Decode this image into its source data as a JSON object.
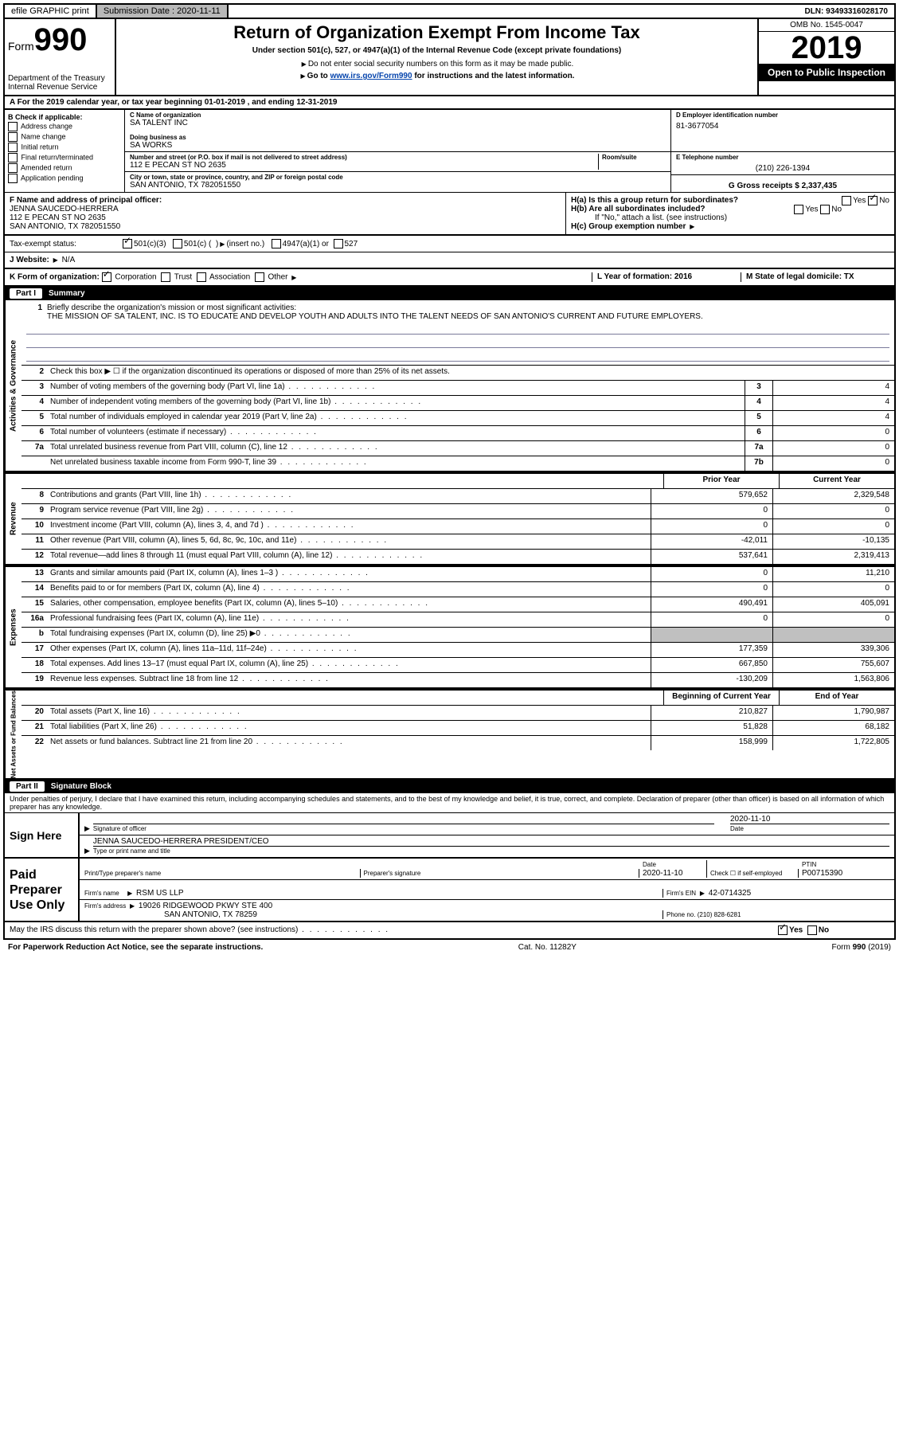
{
  "topbar": {
    "efile": "efile GRAPHIC print",
    "submission_label": "Submission Date : 2020-11-11",
    "dln": "DLN: 93493316028170"
  },
  "header": {
    "form_label": "Form",
    "form_number": "990",
    "dept": "Department of the Treasury",
    "irs": "Internal Revenue Service",
    "title": "Return of Organization Exempt From Income Tax",
    "subtitle": "Under section 501(c), 527, or 4947(a)(1) of the Internal Revenue Code (except private foundations)",
    "note1": "Do not enter social security numbers on this form as it may be made public.",
    "note2_prefix": "Go to ",
    "note2_link": "www.irs.gov/Form990",
    "note2_suffix": " for instructions and the latest information.",
    "omb": "OMB No. 1545-0047",
    "year": "2019",
    "open": "Open to Public Inspection"
  },
  "row_a": "A   For the 2019 calendar year, or tax year beginning 01-01-2019    , and ending 12-31-2019",
  "section_b": {
    "label": "B Check if applicable:",
    "items": [
      "Address change",
      "Name change",
      "Initial return",
      "Final return/terminated",
      "Amended return",
      "Application pending"
    ]
  },
  "section_c": {
    "name_label": "C Name of organization",
    "name": "SA TALENT INC",
    "dba_label": "Doing business as",
    "dba": "SA WORKS",
    "street_label": "Number and street (or P.O. box if mail is not delivered to street address)",
    "room_label": "Room/suite",
    "street": "112 E PECAN ST NO 2635",
    "city_label": "City or town, state or province, country, and ZIP or foreign postal code",
    "city": "SAN ANTONIO, TX  782051550"
  },
  "section_d": {
    "label": "D Employer identification number",
    "value": "81-3677054"
  },
  "section_e": {
    "label": "E Telephone number",
    "value": "(210) 226-1394"
  },
  "section_g": {
    "label": "G Gross receipts $ 2,337,435"
  },
  "section_f": {
    "label": "F  Name and address of principal officer:",
    "name": "JENNA SAUCEDO-HERRERA",
    "street": "112 E PECAN ST NO 2635",
    "city": "SAN ANTONIO, TX  782051550"
  },
  "section_h": {
    "ha": "H(a)  Is this a group return for subordinates?",
    "hb": "H(b)  Are all subordinates included?",
    "hb_note": "If \"No,\" attach a list. (see instructions)",
    "hc": "H(c)  Group exemption number",
    "yes": "Yes",
    "no": "No"
  },
  "tax_exempt": {
    "label": "Tax-exempt status:",
    "opt1": "501(c)(3)",
    "opt2_a": "501(c) (",
    "opt2_b": ")",
    "opt2_insert": "(insert no.)",
    "opt3": "4947(a)(1) or",
    "opt4": "527"
  },
  "website": {
    "label": "J   Website:",
    "value": "N/A"
  },
  "klm": {
    "k_label": "K Form of organization:",
    "k_corp": "Corporation",
    "k_trust": "Trust",
    "k_assoc": "Association",
    "k_other": "Other",
    "l": "L Year of formation: 2016",
    "m": "M State of legal domicile: TX"
  },
  "part1": {
    "label": "Part I",
    "title": "Summary"
  },
  "mission": {
    "num": "1",
    "desc": "Briefly describe the organization's mission or most significant activities:",
    "text": "THE MISSION OF SA TALENT, INC. IS TO EDUCATE AND DEVELOP YOUTH AND ADULTS INTO THE TALENT NEEDS OF SAN ANTONIO'S CURRENT AND FUTURE EMPLOYERS."
  },
  "governance": {
    "tab": "Activities & Governance",
    "lines": [
      {
        "n": "2",
        "d": "Check this box ▶ ☐  if the organization discontinued its operations or disposed of more than 25% of its net assets."
      },
      {
        "n": "3",
        "d": "Number of voting members of the governing body (Part VI, line 1a)",
        "box": "3",
        "v": "4"
      },
      {
        "n": "4",
        "d": "Number of independent voting members of the governing body (Part VI, line 1b)",
        "box": "4",
        "v": "4"
      },
      {
        "n": "5",
        "d": "Total number of individuals employed in calendar year 2019 (Part V, line 2a)",
        "box": "5",
        "v": "4"
      },
      {
        "n": "6",
        "d": "Total number of volunteers (estimate if necessary)",
        "box": "6",
        "v": "0"
      },
      {
        "n": "7a",
        "d": "Total unrelated business revenue from Part VIII, column (C), line 12",
        "box": "7a",
        "v": "0"
      },
      {
        "n": "",
        "d": "Net unrelated business taxable income from Form 990-T, line 39",
        "box": "7b",
        "v": "0"
      }
    ]
  },
  "columns": {
    "prior": "Prior Year",
    "current": "Current Year"
  },
  "revenue": {
    "tab": "Revenue",
    "lines": [
      {
        "n": "8",
        "d": "Contributions and grants (Part VIII, line 1h)",
        "p": "579,652",
        "c": "2,329,548"
      },
      {
        "n": "9",
        "d": "Program service revenue (Part VIII, line 2g)",
        "p": "0",
        "c": "0"
      },
      {
        "n": "10",
        "d": "Investment income (Part VIII, column (A), lines 3, 4, and 7d )",
        "p": "0",
        "c": "0"
      },
      {
        "n": "11",
        "d": "Other revenue (Part VIII, column (A), lines 5, 6d, 8c, 9c, 10c, and 11e)",
        "p": "-42,011",
        "c": "-10,135"
      },
      {
        "n": "12",
        "d": "Total revenue—add lines 8 through 11 (must equal Part VIII, column (A), line 12)",
        "p": "537,641",
        "c": "2,319,413"
      }
    ]
  },
  "expenses": {
    "tab": "Expenses",
    "lines": [
      {
        "n": "13",
        "d": "Grants and similar amounts paid (Part IX, column (A), lines 1–3 )",
        "p": "0",
        "c": "11,210"
      },
      {
        "n": "14",
        "d": "Benefits paid to or for members (Part IX, column (A), line 4)",
        "p": "0",
        "c": "0"
      },
      {
        "n": "15",
        "d": "Salaries, other compensation, employee benefits (Part IX, column (A), lines 5–10)",
        "p": "490,491",
        "c": "405,091"
      },
      {
        "n": "16a",
        "d": "Professional fundraising fees (Part IX, column (A), line 11e)",
        "p": "0",
        "c": "0"
      },
      {
        "n": "b",
        "d": "Total fundraising expenses (Part IX, column (D), line 25) ▶0",
        "p": "shaded",
        "c": "shaded"
      },
      {
        "n": "17",
        "d": "Other expenses (Part IX, column (A), lines 11a–11d, 11f–24e)",
        "p": "177,359",
        "c": "339,306"
      },
      {
        "n": "18",
        "d": "Total expenses. Add lines 13–17 (must equal Part IX, column (A), line 25)",
        "p": "667,850",
        "c": "755,607"
      },
      {
        "n": "19",
        "d": "Revenue less expenses. Subtract line 18 from line 12",
        "p": "-130,209",
        "c": "1,563,806"
      }
    ]
  },
  "netassets": {
    "tab": "Net Assets or Fund Balances",
    "cols": {
      "p": "Beginning of Current Year",
      "c": "End of Year"
    },
    "lines": [
      {
        "n": "20",
        "d": "Total assets (Part X, line 16)",
        "p": "210,827",
        "c": "1,790,987"
      },
      {
        "n": "21",
        "d": "Total liabilities (Part X, line 26)",
        "p": "51,828",
        "c": "68,182"
      },
      {
        "n": "22",
        "d": "Net assets or fund balances. Subtract line 21 from line 20",
        "p": "158,999",
        "c": "1,722,805"
      }
    ]
  },
  "part2": {
    "label": "Part II",
    "title": "Signature Block"
  },
  "sig": {
    "declaration": "Under penalties of perjury, I declare that I have examined this return, including accompanying schedules and statements, and to the best of my knowledge and belief, it is true, correct, and complete. Declaration of preparer (other than officer) is based on all information of which preparer has any knowledge.",
    "sign_here": "Sign Here",
    "sig_officer": "Signature of officer",
    "date": "Date",
    "date_val": "2020-11-10",
    "name_title": "JENNA SAUCEDO-HERRERA  PRESIDENT/CEO",
    "type_name": "Type or print name and title",
    "paid": "Paid Preparer Use Only",
    "print_name": "Print/Type preparer's name",
    "prep_sig": "Preparer's signature",
    "prep_date": "Date",
    "prep_date_val": "2020-11-10",
    "check_self": "Check ☐ if self-employed",
    "ptin_label": "PTIN",
    "ptin": "P00715390",
    "firm_name_label": "Firm's name",
    "firm_name": "RSM US LLP",
    "firm_ein_label": "Firm's EIN",
    "firm_ein": "42-0714325",
    "firm_addr_label": "Firm's address",
    "firm_addr1": "19026 RIDGEWOOD PKWY STE 400",
    "firm_addr2": "SAN ANTONIO, TX  78259",
    "phone_label": "Phone no. (210) 828-6281",
    "discuss": "May the IRS discuss this return with the preparer shown above? (see instructions)"
  },
  "footer": {
    "left": "For Paperwork Reduction Act Notice, see the separate instructions.",
    "center": "Cat. No. 11282Y",
    "right": "Form 990 (2019)"
  }
}
